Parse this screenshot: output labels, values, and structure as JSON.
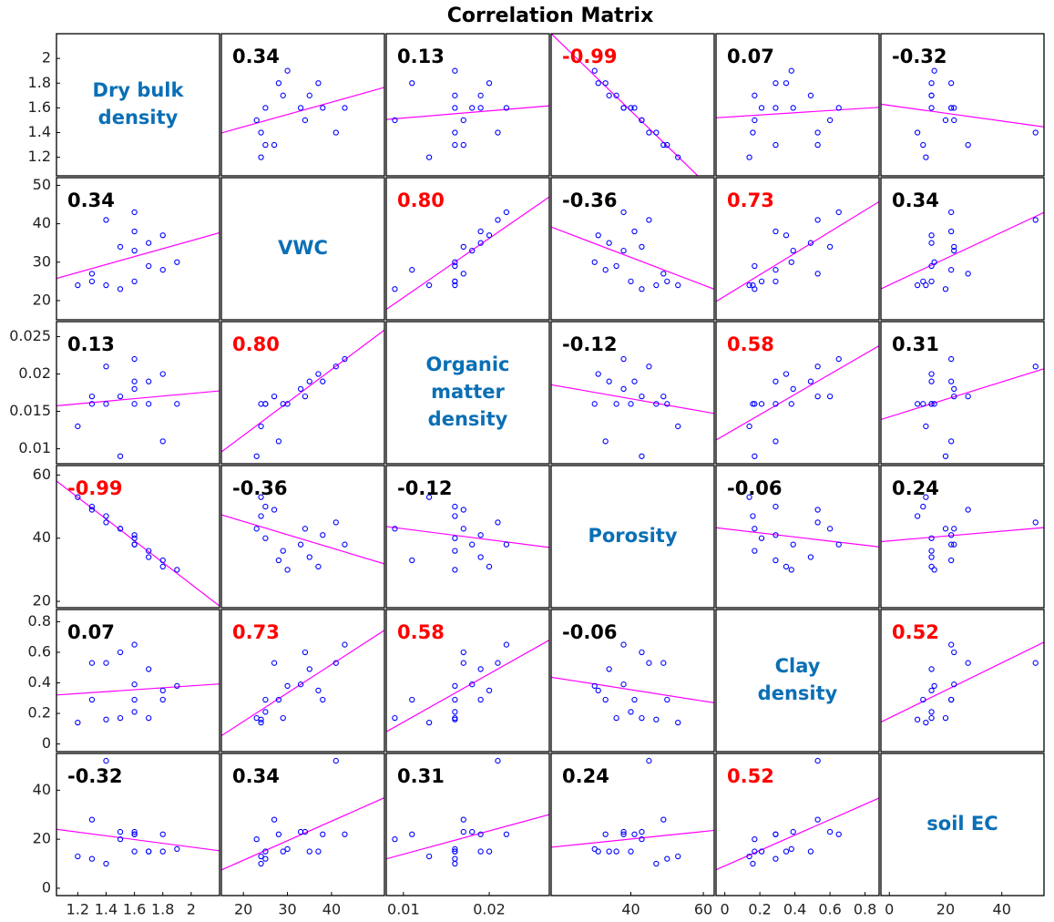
{
  "chart_data": {
    "type": "scatter_matrix",
    "title": "Correlation Matrix",
    "point_color": "#0000ff",
    "fit_color": "#ff00ff",
    "name_color": "#0a6fb5",
    "highlight_color": "#ff0000",
    "highlight_above": 0.5,
    "variables": [
      {
        "label_lines": [
          "Dry bulk",
          "density"
        ],
        "lim": [
          1.05,
          2.2
        ],
        "xticks": [
          1.2,
          1.4,
          1.6,
          1.8,
          2
        ],
        "yticks": [
          1.2,
          1.4,
          1.6,
          1.8,
          2
        ],
        "values": [
          1.5,
          1.4,
          1.2,
          1.3,
          1.6,
          1.3,
          1.8,
          1.7,
          1.9,
          1.6,
          1.5,
          1.7,
          1.8,
          1.6,
          1.4,
          1.6
        ]
      },
      {
        "label_lines": [
          "VWC"
        ],
        "lim": [
          15,
          52
        ],
        "xticks": [
          20,
          30,
          40
        ],
        "yticks": [
          20,
          30,
          40,
          50
        ],
        "values": [
          23,
          24,
          24,
          25,
          25,
          27,
          28,
          29,
          30,
          33,
          34,
          35,
          37,
          38,
          41,
          43
        ]
      },
      {
        "label_lines": [
          "Organic",
          "matter",
          "density"
        ],
        "lim": [
          0.008,
          0.027
        ],
        "xticks": [
          0.01,
          0.02
        ],
        "yticks": [
          0.01,
          0.015,
          0.02,
          0.025
        ],
        "values": [
          0.009,
          0.016,
          0.013,
          0.016,
          0.016,
          0.017,
          0.011,
          0.016,
          0.016,
          0.018,
          0.017,
          0.019,
          0.02,
          0.019,
          0.021,
          0.022
        ]
      },
      {
        "label_lines": [
          "Porosity"
        ],
        "lim": [
          18,
          63
        ],
        "xticks": [
          40,
          60
        ],
        "yticks": [
          20,
          40,
          60
        ],
        "values": [
          43,
          47,
          53,
          50,
          40,
          49,
          33,
          36,
          30,
          38,
          43,
          34,
          31,
          41,
          45,
          38
        ]
      },
      {
        "label_lines": [
          "Clay",
          "density"
        ],
        "lim": [
          -0.05,
          0.88
        ],
        "xticks": [
          0,
          0.2,
          0.4,
          0.6,
          0.8
        ],
        "yticks": [
          0,
          0.2,
          0.4,
          0.6,
          0.8
        ],
        "values": [
          0.17,
          0.16,
          0.14,
          0.29,
          0.21,
          0.53,
          0.29,
          0.17,
          0.38,
          0.39,
          0.6,
          0.49,
          0.35,
          0.29,
          0.53,
          0.65
        ]
      },
      {
        "label_lines": [
          "soil EC"
        ],
        "lim": [
          -3,
          55
        ],
        "xticks": [
          0,
          20,
          40
        ],
        "yticks": [
          0,
          20,
          40
        ],
        "values": [
          20,
          10,
          13,
          12,
          15,
          28,
          22,
          15,
          16,
          23,
          23,
          15,
          15,
          22,
          52,
          22
        ]
      }
    ],
    "correlations": [
      [
        null,
        0.34,
        0.13,
        -0.99,
        0.07,
        -0.32
      ],
      [
        0.34,
        null,
        0.8,
        -0.36,
        0.73,
        0.34
      ],
      [
        0.13,
        0.8,
        null,
        -0.12,
        0.58,
        0.31
      ],
      [
        -0.99,
        -0.36,
        -0.12,
        null,
        -0.06,
        0.24
      ],
      [
        0.07,
        0.73,
        0.58,
        -0.06,
        null,
        0.52
      ],
      [
        -0.32,
        0.34,
        0.31,
        0.24,
        0.52,
        null
      ]
    ],
    "correlation_labels": [
      [
        null,
        "0.34",
        "0.13",
        "-0.99",
        "0.07",
        "-0.32"
      ],
      [
        "0.34",
        null,
        "0.80",
        "-0.36",
        "0.73",
        "0.34"
      ],
      [
        "0.13",
        "0.80",
        null,
        "-0.12",
        "0.58",
        "0.31"
      ],
      [
        "-0.99",
        "-0.36",
        "-0.12",
        null,
        "-0.06",
        "0.24"
      ],
      [
        "0.07",
        "0.73",
        "0.58",
        "-0.06",
        null,
        "0.52"
      ],
      [
        "-0.32",
        "0.34",
        "0.31",
        "0.24",
        "0.52",
        null
      ]
    ]
  }
}
